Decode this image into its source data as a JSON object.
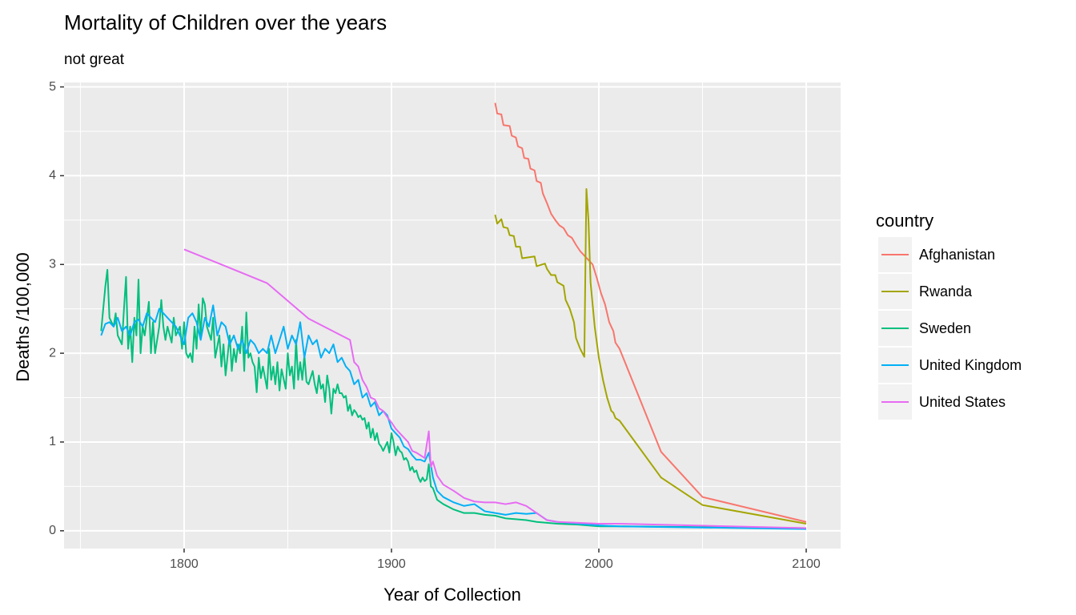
{
  "chart_data": {
    "type": "line",
    "title": "Mortality of Children over the years",
    "subtitle": "not great",
    "x_label": "Year of Collection",
    "y_label": "Deaths /100,000",
    "legend_title": "country",
    "legend_position": "right",
    "grid": true,
    "xlim": [
      1742.1,
      2116.6
    ],
    "ylim": [
      -0.2,
      5.05
    ],
    "xticks": [
      1800,
      1900,
      2000,
      2100
    ],
    "yticks": [
      0,
      1,
      2,
      3,
      4,
      5
    ],
    "xminor": [
      1750,
      1850,
      1950,
      2050
    ],
    "yminor": [
      0.5,
      1.5,
      2.5,
      3.5,
      4.5
    ],
    "series": [
      {
        "name": "Afghanistan",
        "color": "#F8766D",
        "x": [
          1950,
          1951,
          1953,
          1954,
          1957,
          1958,
          1960,
          1961,
          1963,
          1964,
          1966,
          1967,
          1969,
          1970,
          1972,
          1973,
          1975,
          1977,
          1979,
          1981,
          1983,
          1985,
          1987,
          1989,
          1991,
          1993,
          1995,
          1997,
          1999,
          2001,
          2003,
          2005,
          2007,
          2008,
          2010,
          2030,
          2050,
          2100
        ],
        "values": [
          4.82,
          4.7,
          4.69,
          4.57,
          4.56,
          4.45,
          4.43,
          4.33,
          4.31,
          4.2,
          4.19,
          4.08,
          4.06,
          3.94,
          3.92,
          3.8,
          3.69,
          3.57,
          3.5,
          3.44,
          3.41,
          3.33,
          3.3,
          3.22,
          3.15,
          3.1,
          3.05,
          3.0,
          2.85,
          2.68,
          2.55,
          2.35,
          2.25,
          2.12,
          2.05,
          0.89,
          0.38,
          0.1
        ]
      },
      {
        "name": "Rwanda",
        "color": "#A3A500",
        "x": [
          1950,
          1951,
          1953,
          1954,
          1956,
          1957,
          1959,
          1960,
          1962,
          1963,
          1966,
          1969,
          1970,
          1974,
          1975,
          1977,
          1979,
          1980,
          1983,
          1984,
          1986,
          1988,
          1989,
          1991,
          1993,
          1994,
          1995,
          1996,
          1998,
          2000,
          2002,
          2004,
          2006,
          2007,
          2008,
          2010,
          2030,
          2050,
          2100
        ],
        "values": [
          3.56,
          3.46,
          3.51,
          3.42,
          3.41,
          3.33,
          3.32,
          3.2,
          3.2,
          3.07,
          3.08,
          3.09,
          2.98,
          3.01,
          2.95,
          2.88,
          2.88,
          2.8,
          2.76,
          2.6,
          2.5,
          2.35,
          2.17,
          2.05,
          1.96,
          3.85,
          3.5,
          2.8,
          2.3,
          1.95,
          1.7,
          1.5,
          1.35,
          1.33,
          1.27,
          1.24,
          0.6,
          0.29,
          0.08
        ]
      },
      {
        "name": "Sweden",
        "color": "#00BF7D",
        "x": [
          1760,
          1762,
          1763,
          1764,
          1766,
          1767,
          1768,
          1770,
          1771,
          1772,
          1773,
          1774,
          1775,
          1776,
          1777,
          1778,
          1779,
          1780,
          1781,
          1783,
          1784,
          1785,
          1786,
          1788,
          1789,
          1790,
          1791,
          1792,
          1794,
          1795,
          1796,
          1798,
          1799,
          1800,
          1801,
          1802,
          1803,
          1804,
          1805,
          1806,
          1807,
          1808,
          1809,
          1810,
          1811,
          1813,
          1814,
          1815,
          1817,
          1818,
          1819,
          1820,
          1822,
          1823,
          1824,
          1825,
          1826,
          1827,
          1828,
          1829,
          1830,
          1831,
          1832,
          1833,
          1834,
          1835,
          1836,
          1837,
          1838,
          1840,
          1841,
          1842,
          1843,
          1844,
          1845,
          1846,
          1847,
          1849,
          1850,
          1851,
          1852,
          1853,
          1854,
          1855,
          1856,
          1857,
          1858,
          1859,
          1860,
          1862,
          1863,
          1864,
          1865,
          1866,
          1867,
          1868,
          1869,
          1870,
          1871,
          1872,
          1873,
          1874,
          1875,
          1876,
          1877,
          1878,
          1879,
          1880,
          1881,
          1882,
          1883,
          1884,
          1885,
          1886,
          1887,
          1888,
          1889,
          1890,
          1891,
          1892,
          1893,
          1894,
          1895,
          1896,
          1897,
          1898,
          1899,
          1900,
          1901,
          1902,
          1903,
          1904,
          1905,
          1906,
          1907,
          1908,
          1909,
          1910,
          1911,
          1912,
          1913,
          1914,
          1915,
          1916,
          1917,
          1918,
          1919,
          1920,
          1922,
          1925,
          1930,
          1935,
          1940,
          1945,
          1950,
          1955,
          1960,
          1965,
          1970,
          1980,
          1990,
          2000,
          2010,
          2100
        ],
        "values": [
          2.25,
          2.75,
          2.94,
          2.4,
          2.3,
          2.45,
          2.2,
          2.1,
          2.5,
          2.86,
          2.05,
          2.3,
          1.9,
          2.4,
          2.2,
          2.83,
          2.0,
          2.3,
          2.2,
          2.58,
          2.0,
          2.35,
          2.0,
          2.3,
          2.6,
          2.3,
          2.15,
          2.3,
          2.12,
          2.4,
          2.2,
          2.3,
          2.05,
          2.35,
          2.0,
          1.95,
          2.0,
          1.9,
          2.3,
          2.05,
          2.55,
          2.2,
          2.62,
          2.55,
          2.3,
          2.15,
          2.4,
          1.95,
          2.2,
          1.85,
          2.1,
          1.75,
          2.2,
          1.8,
          2.05,
          1.9,
          2.1,
          2.0,
          2.3,
          1.8,
          2.46,
          1.95,
          2.0,
          1.9,
          1.85,
          1.56,
          1.95,
          1.72,
          1.85,
          1.6,
          2.05,
          1.7,
          1.85,
          1.65,
          1.9,
          1.58,
          1.82,
          1.6,
          2.0,
          1.75,
          1.85,
          1.6,
          2.15,
          1.7,
          1.9,
          1.7,
          1.98,
          1.68,
          1.65,
          1.8,
          1.65,
          1.55,
          1.75,
          1.6,
          1.65,
          1.45,
          1.75,
          1.6,
          1.32,
          1.6,
          1.55,
          1.65,
          1.55,
          1.55,
          1.5,
          1.52,
          1.35,
          1.42,
          1.3,
          1.36,
          1.33,
          1.28,
          1.3,
          1.25,
          1.27,
          1.15,
          1.22,
          1.05,
          1.15,
          1.02,
          1.1,
          0.98,
          0.95,
          0.9,
          0.95,
          1.0,
          0.88,
          1.1,
          1.0,
          0.85,
          0.95,
          0.9,
          0.88,
          0.8,
          0.82,
          0.78,
          0.68,
          0.72,
          0.66,
          0.68,
          0.6,
          0.55,
          0.6,
          0.56,
          0.58,
          0.75,
          0.5,
          0.48,
          0.35,
          0.3,
          0.24,
          0.2,
          0.2,
          0.18,
          0.17,
          0.14,
          0.13,
          0.12,
          0.1,
          0.08,
          0.07,
          0.05,
          0.05,
          0.03
        ]
      },
      {
        "name": "United Kingdom",
        "color": "#00B0F6",
        "x": [
          1760,
          1762,
          1764,
          1766,
          1768,
          1770,
          1772,
          1774,
          1776,
          1778,
          1780,
          1782,
          1784,
          1786,
          1788,
          1790,
          1792,
          1794,
          1796,
          1798,
          1800,
          1802,
          1804,
          1806,
          1808,
          1810,
          1812,
          1814,
          1816,
          1818,
          1820,
          1822,
          1824,
          1826,
          1828,
          1830,
          1832,
          1834,
          1836,
          1838,
          1840,
          1842,
          1844,
          1846,
          1848,
          1850,
          1852,
          1854,
          1856,
          1858,
          1860,
          1862,
          1864,
          1866,
          1868,
          1870,
          1872,
          1874,
          1876,
          1878,
          1880,
          1882,
          1884,
          1886,
          1888,
          1890,
          1892,
          1894,
          1896,
          1898,
          1900,
          1902,
          1904,
          1906,
          1908,
          1910,
          1912,
          1914,
          1916,
          1918,
          1920,
          1922,
          1925,
          1930,
          1935,
          1940,
          1945,
          1950,
          1955,
          1960,
          1965,
          1970,
          1975,
          1980,
          1990,
          2000,
          2010,
          2100
        ],
        "values": [
          2.2,
          2.33,
          2.35,
          2.3,
          2.4,
          2.25,
          2.3,
          2.2,
          2.35,
          2.38,
          2.3,
          2.45,
          2.4,
          2.35,
          2.5,
          2.45,
          2.4,
          2.35,
          2.3,
          2.2,
          2.1,
          2.4,
          2.45,
          2.35,
          2.15,
          2.4,
          2.3,
          2.54,
          2.2,
          2.35,
          2.3,
          2.1,
          2.2,
          2.05,
          2.15,
          2.0,
          2.15,
          2.1,
          2.0,
          2.05,
          2.0,
          2.2,
          2.0,
          2.15,
          2.3,
          2.05,
          2.2,
          2.1,
          2.35,
          1.95,
          2.2,
          2.1,
          2.15,
          1.95,
          2.05,
          2.0,
          2.1,
          1.9,
          1.95,
          1.85,
          1.8,
          1.65,
          1.7,
          1.5,
          1.55,
          1.4,
          1.45,
          1.3,
          1.35,
          1.3,
          1.15,
          1.1,
          1.05,
          0.95,
          0.92,
          0.85,
          0.8,
          0.8,
          0.78,
          0.88,
          0.6,
          0.45,
          0.38,
          0.32,
          0.28,
          0.3,
          0.22,
          0.2,
          0.18,
          0.2,
          0.19,
          0.2,
          0.12,
          0.1,
          0.08,
          0.06,
          0.05,
          0.02
        ]
      },
      {
        "name": "United States",
        "color": "#E76BF3",
        "x": [
          1800,
          1820,
          1840,
          1860,
          1880,
          1882,
          1884,
          1886,
          1888,
          1890,
          1892,
          1894,
          1896,
          1898,
          1900,
          1902,
          1904,
          1906,
          1908,
          1910,
          1912,
          1914,
          1916,
          1918,
          1919,
          1920,
          1922,
          1925,
          1930,
          1935,
          1940,
          1945,
          1950,
          1955,
          1960,
          1965,
          1970,
          1975,
          1980,
          1990,
          2000,
          2010,
          2100
        ],
        "values": [
          3.17,
          2.98,
          2.79,
          2.39,
          2.15,
          1.9,
          1.85,
          1.7,
          1.62,
          1.5,
          1.48,
          1.38,
          1.35,
          1.28,
          1.22,
          1.15,
          1.1,
          1.05,
          1.0,
          0.9,
          0.88,
          0.85,
          0.82,
          1.12,
          0.72,
          0.78,
          0.62,
          0.52,
          0.45,
          0.37,
          0.33,
          0.32,
          0.32,
          0.3,
          0.32,
          0.28,
          0.2,
          0.12,
          0.1,
          0.09,
          0.08,
          0.08,
          0.03
        ]
      }
    ]
  }
}
